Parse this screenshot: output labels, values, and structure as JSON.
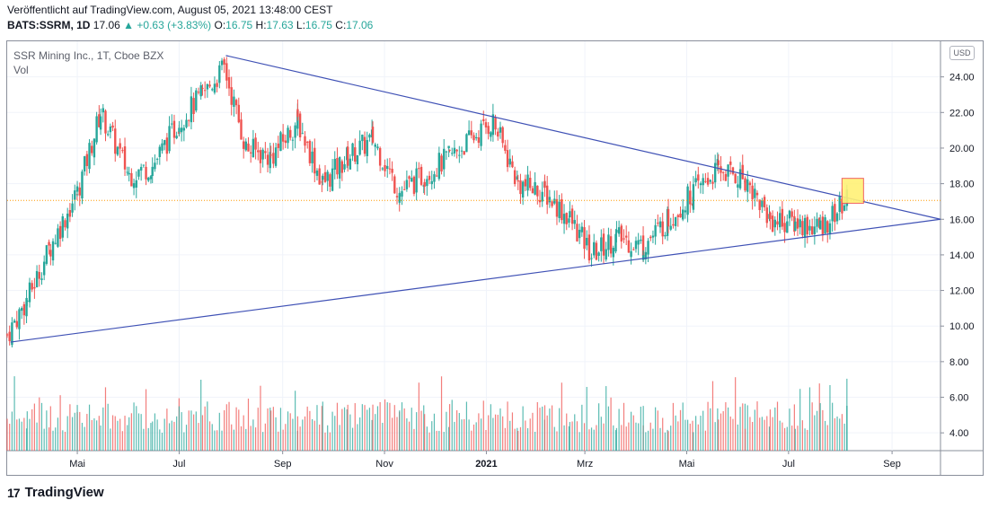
{
  "header": {
    "published": "Veröffentlicht auf TradingView.com, August 05, 2021 13:48:00 CEST",
    "symbol": "BATS:SSRM, 1D",
    "price": "17.06",
    "change_icon": "triangle-up-icon",
    "change": "+0.63 (+3.83%)",
    "o_label": "O:",
    "o_value": "16.75",
    "h_label": "H:",
    "h_value": "17.63",
    "l_label": "L:",
    "l_value": "16.75",
    "c_label": "C:",
    "c_value": "17.06"
  },
  "legend": {
    "title": "SSR Mining Inc., 1T, Cboe BZX",
    "volume": "Vol"
  },
  "currency": "USD",
  "brand": {
    "logo_icon": "tradingview-logo-icon",
    "name": "TradingView"
  },
  "colors": {
    "up": "#26a69a",
    "down": "#ef5350",
    "trendline": "#3f51b5",
    "price_line": "#ff9800",
    "highlight": "#fff176"
  },
  "chart_data": {
    "type": "candlestick",
    "y_ticks": [
      "24.00",
      "22.00",
      "20.00",
      "18.00",
      "16.00",
      "14.00",
      "12.00",
      "10.00",
      "8.00",
      "6.00",
      "4.00"
    ],
    "x_ticks": [
      "Mai",
      "Jul",
      "Sep",
      "Nov",
      "2021",
      "Mrz",
      "Mai",
      "Jul",
      "Sep"
    ],
    "ylim": [
      3.0,
      26.0
    ],
    "x_range": [
      "2020-03-20",
      "2021-09-30"
    ],
    "last_price": 17.06,
    "series": [
      {
        "date": "2020-03-20",
        "close": 9.5
      },
      {
        "date": "2020-04-01",
        "close": 11.5
      },
      {
        "date": "2020-04-15",
        "close": 14.5
      },
      {
        "date": "2020-05-01",
        "close": 17.5
      },
      {
        "date": "2020-05-15",
        "close": 22.0
      },
      {
        "date": "2020-06-01",
        "close": 18.5
      },
      {
        "date": "2020-06-15",
        "close": 19.0
      },
      {
        "date": "2020-07-01",
        "close": 21.5
      },
      {
        "date": "2020-07-15",
        "close": 23.0
      },
      {
        "date": "2020-07-28",
        "close": 24.5
      },
      {
        "date": "2020-08-10",
        "close": 20.0
      },
      {
        "date": "2020-08-25",
        "close": 19.5
      },
      {
        "date": "2020-09-10",
        "close": 21.5
      },
      {
        "date": "2020-09-25",
        "close": 18.0
      },
      {
        "date": "2020-10-10",
        "close": 19.5
      },
      {
        "date": "2020-10-25",
        "close": 20.5
      },
      {
        "date": "2020-11-10",
        "close": 17.5
      },
      {
        "date": "2020-11-25",
        "close": 18.5
      },
      {
        "date": "2020-12-10",
        "close": 19.5
      },
      {
        "date": "2021-01-05",
        "close": 21.5
      },
      {
        "date": "2021-01-20",
        "close": 18.0
      },
      {
        "date": "2021-02-05",
        "close": 17.5
      },
      {
        "date": "2021-02-20",
        "close": 16.0
      },
      {
        "date": "2021-03-05",
        "close": 14.0
      },
      {
        "date": "2021-03-20",
        "close": 15.0
      },
      {
        "date": "2021-04-05",
        "close": 14.5
      },
      {
        "date": "2021-04-20",
        "close": 16.0
      },
      {
        "date": "2021-05-05",
        "close": 17.5
      },
      {
        "date": "2021-05-20",
        "close": 18.8
      },
      {
        "date": "2021-06-05",
        "close": 18.3
      },
      {
        "date": "2021-06-20",
        "close": 16.0
      },
      {
        "date": "2021-07-05",
        "close": 15.8
      },
      {
        "date": "2021-07-20",
        "close": 15.5
      },
      {
        "date": "2021-08-05",
        "close": 17.06
      }
    ],
    "annotations": [
      {
        "type": "trendline",
        "name": "upper-trendline",
        "from": {
          "date": "2020-07-29",
          "price": 25.2
        },
        "to": {
          "date": "2021-09-30",
          "price": 16.0
        }
      },
      {
        "type": "trendline",
        "name": "lower-trendline",
        "from": {
          "date": "2020-03-22",
          "price": 9.1
        },
        "to": {
          "date": "2021-09-30",
          "price": 16.0
        }
      }
    ]
  }
}
